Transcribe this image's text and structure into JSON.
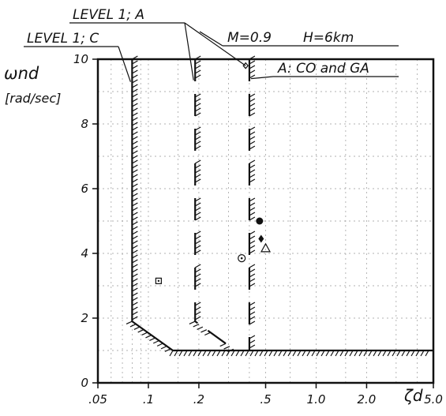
{
  "chart_data": {
    "type": "scatter",
    "title": "",
    "xlabel": "ζd",
    "ylabel": "ωnd",
    "ylabel_unit": "[rad/sec]",
    "x_scale": "log",
    "xlim": [
      0.05,
      5.0
    ],
    "ylim": [
      0,
      10
    ],
    "x_ticks": [
      {
        "value": 0.05,
        "label": ".05"
      },
      {
        "value": 0.1,
        "label": ".1"
      },
      {
        "value": 0.2,
        "label": ".2"
      },
      {
        "value": 0.5,
        "label": ".5"
      },
      {
        "value": 1.0,
        "label": "1.0"
      },
      {
        "value": 2.0,
        "label": "2.0"
      },
      {
        "value": 5.0,
        "label": "5.0"
      }
    ],
    "y_ticks": [
      {
        "value": 0,
        "label": "0"
      },
      {
        "value": 2,
        "label": "2"
      },
      {
        "value": 4,
        "label": "4"
      },
      {
        "value": 6,
        "label": "6"
      },
      {
        "value": 8,
        "label": "8"
      },
      {
        "value": 10,
        "label": "10"
      }
    ],
    "grid": true,
    "flight_condition": {
      "mach": "M=0.9",
      "altitude": "H=6km"
    },
    "boundaries": [
      {
        "name": "LEVEL 1; C",
        "points": [
          [
            0.08,
            10
          ],
          [
            0.08,
            1.9
          ],
          [
            0.14,
            1.0
          ],
          [
            5.0,
            1.0
          ]
        ],
        "style": "solid"
      },
      {
        "name": "LEVEL 1; A",
        "points": [
          [
            0.19,
            10
          ],
          [
            0.19,
            1.9
          ],
          [
            0.33,
            1.0
          ]
        ],
        "style": "dashed"
      },
      {
        "name": "A: CO and GA",
        "points": [
          [
            0.4,
            10
          ],
          [
            0.4,
            1.0
          ]
        ],
        "style": "dashed"
      }
    ],
    "points": [
      {
        "x": 0.115,
        "y": 3.15,
        "marker": "square-dot"
      },
      {
        "x": 0.36,
        "y": 3.85,
        "marker": "circle-dot"
      },
      {
        "x": 0.46,
        "y": 5.0,
        "marker": "filled-circle"
      },
      {
        "x": 0.47,
        "y": 4.45,
        "marker": "filled-diamond"
      },
      {
        "x": 0.5,
        "y": 4.15,
        "marker": "triangle"
      },
      {
        "x": 0.38,
        "y": 9.8,
        "marker": "small-diamond"
      }
    ],
    "annotations": {
      "level1_a": "LEVEL 1; A",
      "level1_c": "LEVEL 1; C",
      "region_label": "A: CO and GA"
    }
  }
}
